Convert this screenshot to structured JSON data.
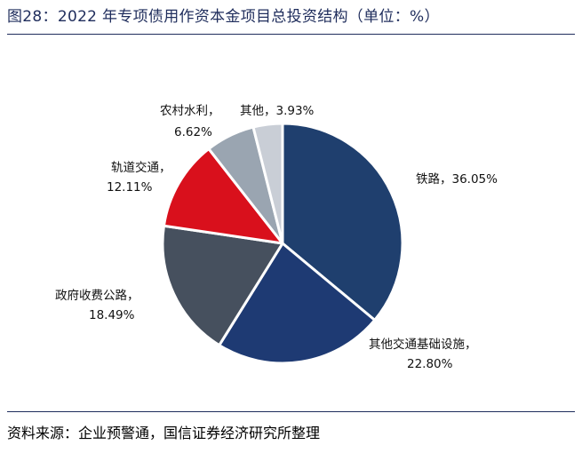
{
  "header": {
    "title": "图28：2022 年专项债用作资本金项目总投资结构（单位：%）"
  },
  "footer": {
    "source": "资料来源：企业预警通，国信证券经济研究所整理"
  },
  "chart_data": {
    "type": "pie",
    "title": "图28：2022 年专项债用作资本金项目总投资结构（单位：%）",
    "unit": "%",
    "slices": [
      {
        "label": "铁路",
        "value": 36.05,
        "value_text": "36.05%",
        "color": "#1f3f6e"
      },
      {
        "label": "其他交通基础设施",
        "value": 22.8,
        "value_text": "22.80%",
        "color": "#1e3a73"
      },
      {
        "label": "政府收费公路",
        "value": 18.49,
        "value_text": "18.49%",
        "color": "#46505e"
      },
      {
        "label": "轨道交通",
        "value": 12.11,
        "value_text": "12.11%",
        "color": "#d9101c"
      },
      {
        "label": "农村水利",
        "value": 6.62,
        "value_text": "6.62%",
        "color": "#9aa5b1"
      },
      {
        "label": "其他",
        "value": 3.93,
        "value_text": "3.93%",
        "color": "#c9ced6"
      }
    ],
    "start": "12 o'clock",
    "direction": "clockwise",
    "slice_border_color": "#ffffff"
  }
}
